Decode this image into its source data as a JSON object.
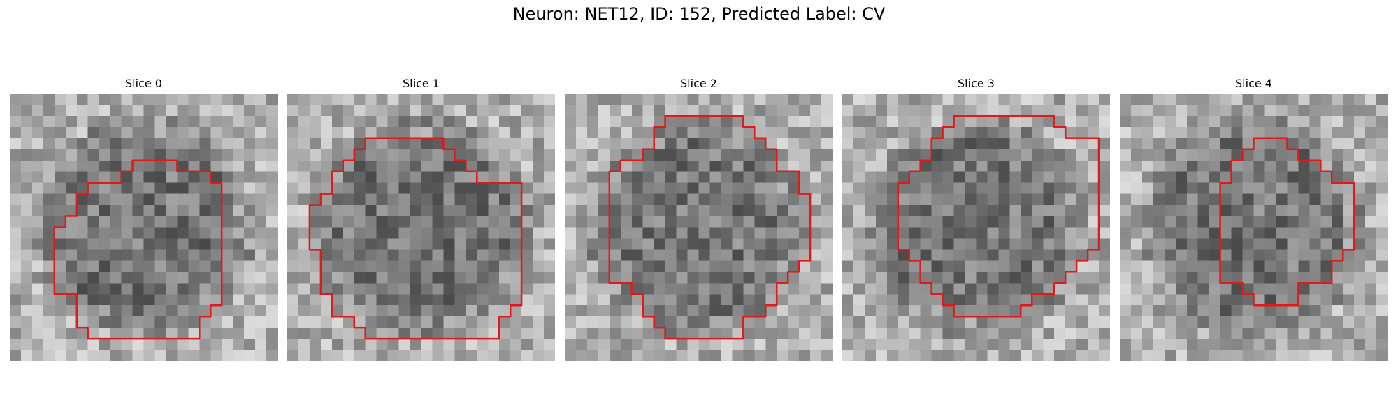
{
  "figure": {
    "title": "Neuron: NET12, ID: 152, Predicted Label: CV",
    "grid_size": 24,
    "contour_color": "#e0191b",
    "panels": [
      {
        "title": "Slice 0",
        "seed": 11,
        "contour": [
          [
            10.5,
            5.5
          ],
          [
            14.5,
            5.5
          ],
          [
            14.5,
            6.5
          ],
          [
            17.5,
            6.5
          ],
          [
            17.5,
            7.5
          ],
          [
            18.5,
            7.5
          ],
          [
            18.5,
            18.5
          ],
          [
            17.5,
            18.5
          ],
          [
            17.5,
            19.5
          ],
          [
            16.5,
            19.5
          ],
          [
            16.5,
            21.5
          ],
          [
            6.5,
            21.5
          ],
          [
            6.5,
            20.5
          ],
          [
            5.5,
            20.5
          ],
          [
            5.5,
            17.5
          ],
          [
            3.5,
            17.5
          ],
          [
            3.5,
            11.5
          ],
          [
            4.5,
            11.5
          ],
          [
            4.5,
            10.5
          ],
          [
            5.5,
            10.5
          ],
          [
            5.5,
            8.5
          ],
          [
            6.5,
            8.5
          ],
          [
            6.5,
            7.5
          ],
          [
            9.5,
            7.5
          ],
          [
            9.5,
            6.5
          ],
          [
            10.5,
            6.5
          ]
        ]
      },
      {
        "title": "Slice 1",
        "seed": 23,
        "contour": [
          [
            6.5,
            3.5
          ],
          [
            13.5,
            3.5
          ],
          [
            13.5,
            4.5
          ],
          [
            14.5,
            4.5
          ],
          [
            14.5,
            5.5
          ],
          [
            15.5,
            5.5
          ],
          [
            15.5,
            6.5
          ],
          [
            16.5,
            6.5
          ],
          [
            16.5,
            7.5
          ],
          [
            20.5,
            7.5
          ],
          [
            20.5,
            18.5
          ],
          [
            19.5,
            18.5
          ],
          [
            19.5,
            19.5
          ],
          [
            18.5,
            19.5
          ],
          [
            18.5,
            21.5
          ],
          [
            6.5,
            21.5
          ],
          [
            6.5,
            20.5
          ],
          [
            5.5,
            20.5
          ],
          [
            5.5,
            19.5
          ],
          [
            3.5,
            19.5
          ],
          [
            3.5,
            17.5
          ],
          [
            2.5,
            17.5
          ],
          [
            2.5,
            13.5
          ],
          [
            1.5,
            13.5
          ],
          [
            1.5,
            9.5
          ],
          [
            2.5,
            9.5
          ],
          [
            2.5,
            8.5
          ],
          [
            3.5,
            8.5
          ],
          [
            3.5,
            6.5
          ],
          [
            4.5,
            6.5
          ],
          [
            4.5,
            5.5
          ],
          [
            5.5,
            5.5
          ],
          [
            5.5,
            4.5
          ],
          [
            6.5,
            4.5
          ]
        ]
      },
      {
        "title": "Slice 2",
        "seed": 37,
        "contour": [
          [
            8.5,
            1.5
          ],
          [
            15.5,
            1.5
          ],
          [
            15.5,
            2.5
          ],
          [
            16.5,
            2.5
          ],
          [
            16.5,
            3.5
          ],
          [
            17.5,
            3.5
          ],
          [
            17.5,
            4.5
          ],
          [
            18.5,
            4.5
          ],
          [
            18.5,
            6.5
          ],
          [
            20.5,
            6.5
          ],
          [
            20.5,
            8.5
          ],
          [
            21.5,
            8.5
          ],
          [
            21.5,
            14.5
          ],
          [
            20.5,
            14.5
          ],
          [
            20.5,
            15.5
          ],
          [
            19.5,
            15.5
          ],
          [
            19.5,
            16.5
          ],
          [
            18.5,
            16.5
          ],
          [
            18.5,
            18.5
          ],
          [
            17.5,
            18.5
          ],
          [
            17.5,
            19.5
          ],
          [
            15.5,
            19.5
          ],
          [
            15.5,
            21.5
          ],
          [
            8.5,
            21.5
          ],
          [
            8.5,
            20.5
          ],
          [
            7.5,
            20.5
          ],
          [
            7.5,
            19.5
          ],
          [
            6.5,
            19.5
          ],
          [
            6.5,
            17.5
          ],
          [
            5.5,
            17.5
          ],
          [
            5.5,
            16.5
          ],
          [
            3.5,
            16.5
          ],
          [
            3.5,
            6.5
          ],
          [
            4.5,
            6.5
          ],
          [
            4.5,
            5.5
          ],
          [
            6.5,
            5.5
          ],
          [
            6.5,
            4.5
          ],
          [
            7.5,
            4.5
          ],
          [
            7.5,
            2.5
          ],
          [
            8.5,
            2.5
          ]
        ]
      },
      {
        "title": "Slice 3",
        "seed": 41,
        "contour": [
          [
            9.5,
            1.5
          ],
          [
            18.5,
            1.5
          ],
          [
            18.5,
            2.5
          ],
          [
            19.5,
            2.5
          ],
          [
            19.5,
            3.5
          ],
          [
            22.5,
            3.5
          ],
          [
            22.5,
            13.5
          ],
          [
            21.5,
            13.5
          ],
          [
            21.5,
            14.5
          ],
          [
            20.5,
            14.5
          ],
          [
            20.5,
            15.5
          ],
          [
            19.5,
            15.5
          ],
          [
            19.5,
            16.5
          ],
          [
            18.5,
            16.5
          ],
          [
            18.5,
            17.5
          ],
          [
            16.5,
            17.5
          ],
          [
            16.5,
            18.5
          ],
          [
            15.5,
            18.5
          ],
          [
            15.5,
            19.5
          ],
          [
            9.5,
            19.5
          ],
          [
            9.5,
            18.5
          ],
          [
            8.5,
            18.5
          ],
          [
            8.5,
            17.5
          ],
          [
            7.5,
            17.5
          ],
          [
            7.5,
            16.5
          ],
          [
            6.5,
            16.5
          ],
          [
            6.5,
            14.5
          ],
          [
            5.5,
            14.5
          ],
          [
            5.5,
            13.5
          ],
          [
            4.5,
            13.5
          ],
          [
            4.5,
            7.5
          ],
          [
            5.5,
            7.5
          ],
          [
            5.5,
            6.5
          ],
          [
            6.5,
            6.5
          ],
          [
            6.5,
            5.5
          ],
          [
            7.5,
            5.5
          ],
          [
            7.5,
            3.5
          ],
          [
            8.5,
            3.5
          ],
          [
            8.5,
            2.5
          ],
          [
            9.5,
            2.5
          ]
        ]
      },
      {
        "title": "Slice 4",
        "seed": 53,
        "contour": [
          [
            11.5,
            3.5
          ],
          [
            14.5,
            3.5
          ],
          [
            14.5,
            4.5
          ],
          [
            15.5,
            4.5
          ],
          [
            15.5,
            5.5
          ],
          [
            17.5,
            5.5
          ],
          [
            17.5,
            6.5
          ],
          [
            18.5,
            6.5
          ],
          [
            18.5,
            7.5
          ],
          [
            20.5,
            7.5
          ],
          [
            20.5,
            13.5
          ],
          [
            19.5,
            13.5
          ],
          [
            19.5,
            14.5
          ],
          [
            18.5,
            14.5
          ],
          [
            18.5,
            16.5
          ],
          [
            15.5,
            16.5
          ],
          [
            15.5,
            18.5
          ],
          [
            11.5,
            18.5
          ],
          [
            11.5,
            17.5
          ],
          [
            10.5,
            17.5
          ],
          [
            10.5,
            16.5
          ],
          [
            8.5,
            16.5
          ],
          [
            8.5,
            7.5
          ],
          [
            9.5,
            7.5
          ],
          [
            9.5,
            5.5
          ],
          [
            10.5,
            5.5
          ],
          [
            10.5,
            4.5
          ],
          [
            11.5,
            4.5
          ]
        ]
      }
    ]
  }
}
